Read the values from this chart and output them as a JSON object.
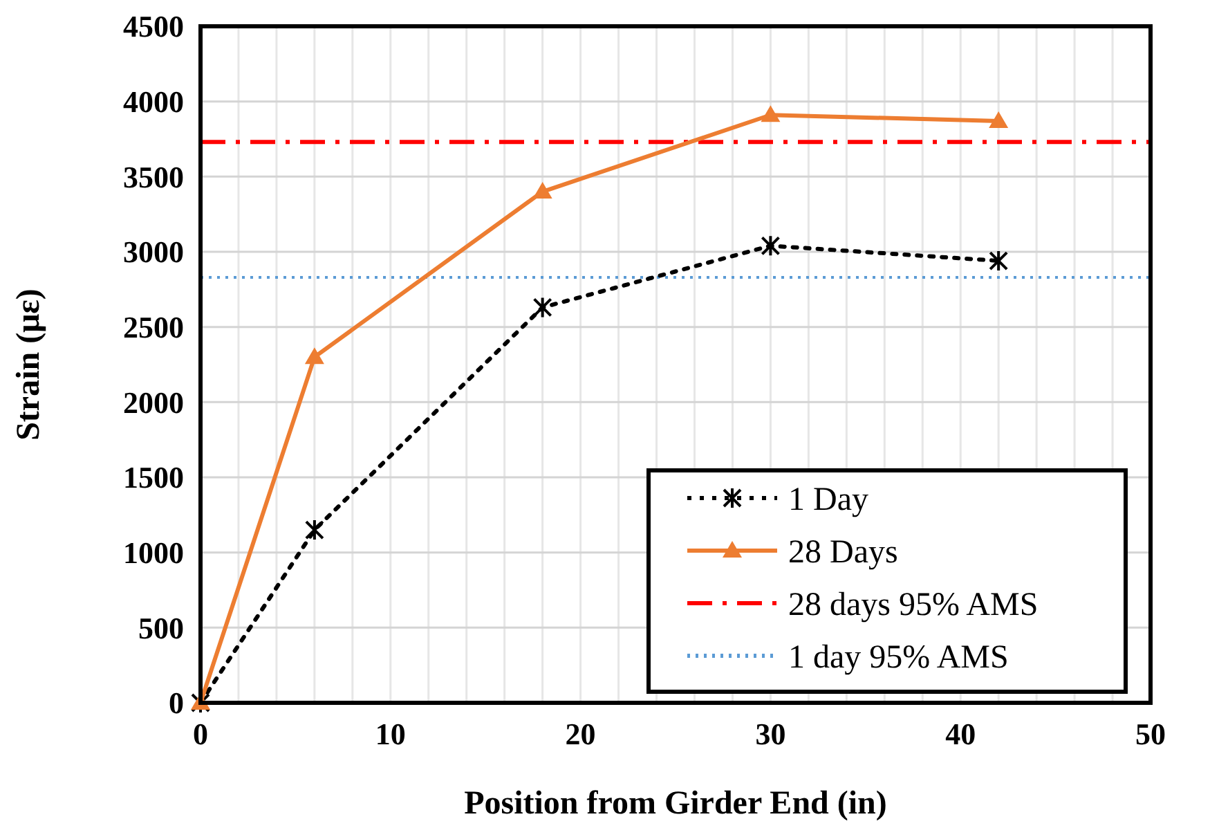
{
  "chart_data": {
    "type": "line",
    "xlabel": "Position from Girder End (in)",
    "ylabel": "Strain (με)",
    "xlim": [
      0,
      50
    ],
    "xticks": [
      0,
      {
        "value": 2,
        "label": null
      },
      {
        "value": 4,
        "label": null
      },
      {
        "value": 6,
        "label": null
      },
      {
        "value": 8,
        "label": null
      },
      10,
      {
        "value": 12,
        "label": null
      },
      {
        "value": 14,
        "label": null
      },
      {
        "value": 16,
        "label": null
      },
      {
        "value": 18,
        "label": null
      },
      20,
      {
        "value": 22,
        "label": null
      },
      {
        "value": 24,
        "label": null
      },
      {
        "value": 26,
        "label": null
      },
      {
        "value": 28,
        "label": null
      },
      30,
      {
        "value": 32,
        "label": null
      },
      {
        "value": 34,
        "label": null
      },
      {
        "value": 36,
        "label": null
      },
      {
        "value": 38,
        "label": null
      },
      40,
      {
        "value": 42,
        "label": null
      },
      {
        "value": 44,
        "label": null
      },
      {
        "value": 46,
        "label": null
      },
      {
        "value": 48,
        "label": null
      },
      50
    ],
    "ylim": [
      0,
      4500
    ],
    "yticks": [
      0,
      500,
      1000,
      1500,
      2000,
      2500,
      3000,
      3500,
      4000,
      4500
    ],
    "grid": true,
    "legend": "bottom right",
    "series": [
      {
        "name": "1 Day",
        "color": "#000000",
        "x": [
          0,
          6,
          18,
          30,
          42
        ],
        "values": [
          0,
          1150,
          2630,
          3040,
          2940
        ],
        "marker": "cross",
        "line_style": "dotted"
      },
      {
        "name": "28 Days",
        "color": "#ed7d31",
        "x": [
          0,
          6,
          18,
          30,
          42
        ],
        "values": [
          0,
          2300,
          3400,
          3910,
          3870
        ],
        "marker": "triangle",
        "line_style": "solid"
      }
    ],
    "ref_lines": [
      {
        "axis": "y",
        "value": 3730,
        "label": "28 days 95% AMS",
        "color": "#ff0000",
        "line_style": "dashdot"
      },
      {
        "axis": "y",
        "value": 2830,
        "label": "1 day 95% AMS",
        "color": "#5b9bd5",
        "line_style": "dotted"
      }
    ]
  }
}
